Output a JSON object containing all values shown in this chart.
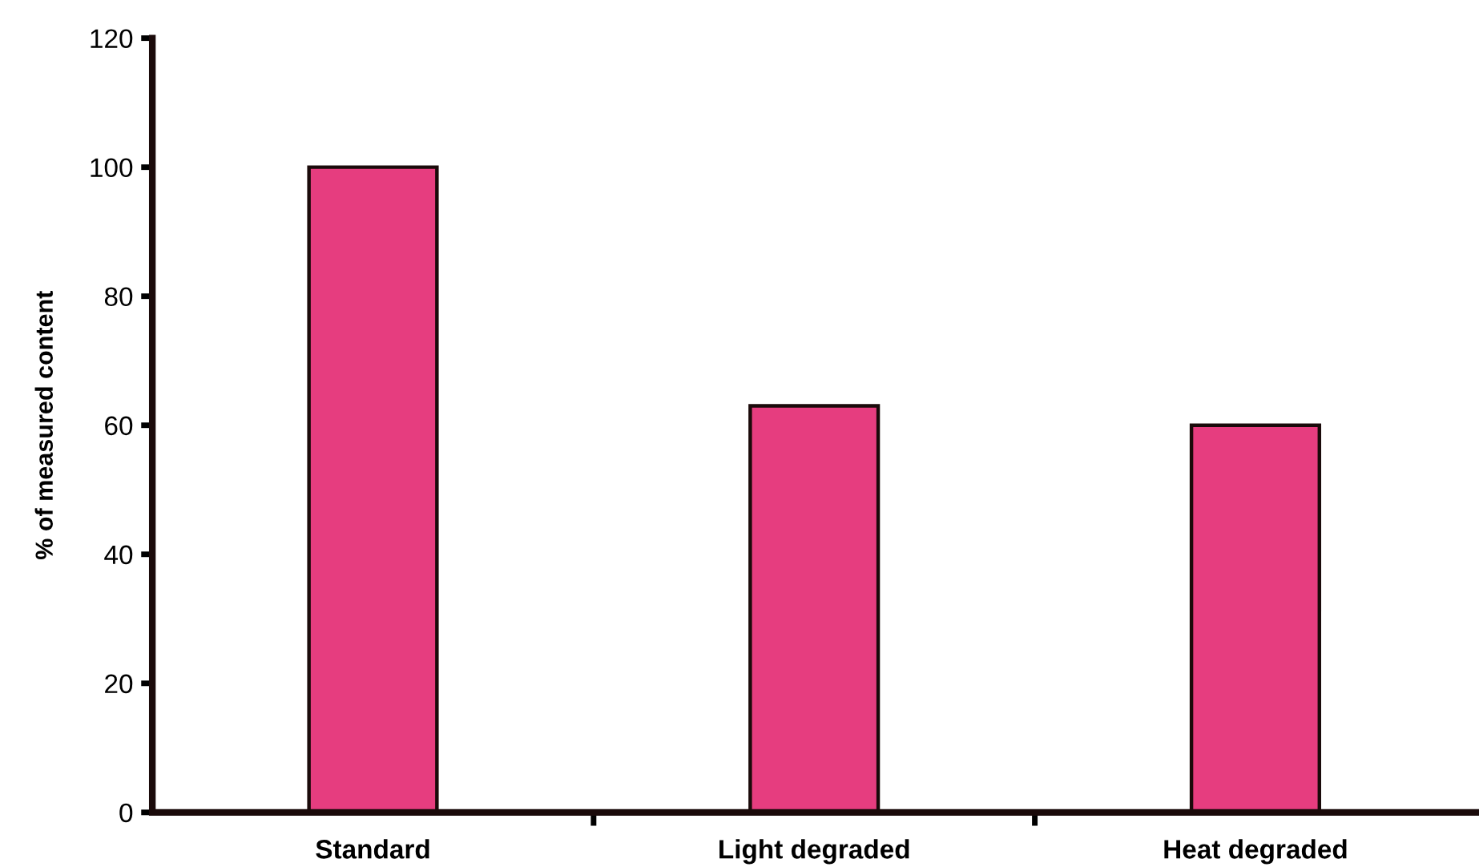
{
  "chart_data": {
    "type": "bar",
    "ylabel": "% of measured content",
    "categories": [
      "Standard",
      "Light degraded",
      "Heat degraded"
    ],
    "values": [
      100,
      63,
      60
    ],
    "color": "#e63d7f",
    "ylim": [
      0,
      120
    ],
    "yticks": [
      0,
      20,
      40,
      60,
      80,
      100,
      120
    ],
    "grid": false,
    "legend": false
  }
}
